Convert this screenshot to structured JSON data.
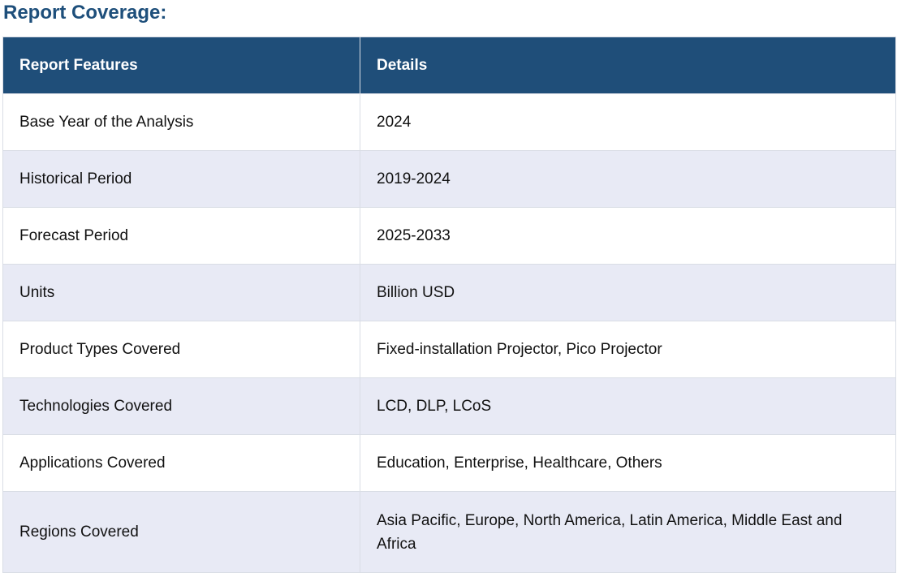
{
  "heading": "Report Coverage:",
  "table": {
    "headers": [
      "Report Features",
      "Details"
    ],
    "rows": [
      {
        "feature": "Base Year of the Analysis",
        "details": "2024"
      },
      {
        "feature": "Historical Period",
        "details": "2019-2024"
      },
      {
        "feature": "Forecast Period",
        "details": "2025-2033"
      },
      {
        "feature": "Units",
        "details": "Billion USD"
      },
      {
        "feature": "Product Types Covered",
        "details": "Fixed-installation Projector, Pico Projector"
      },
      {
        "feature": "Technologies Covered",
        "details": "LCD, DLP, LCoS"
      },
      {
        "feature": "Applications Covered",
        "details": "Education, Enterprise, Healthcare, Others"
      },
      {
        "feature": "Regions Covered",
        "details": " Asia Pacific, Europe, North America, Latin America, Middle East and Africa"
      }
    ]
  },
  "colors": {
    "heading": "#1e4f7b",
    "header_bg": "#1f4e79",
    "alt_row_bg": "#e8eaf5",
    "border": "#d9dde5"
  }
}
